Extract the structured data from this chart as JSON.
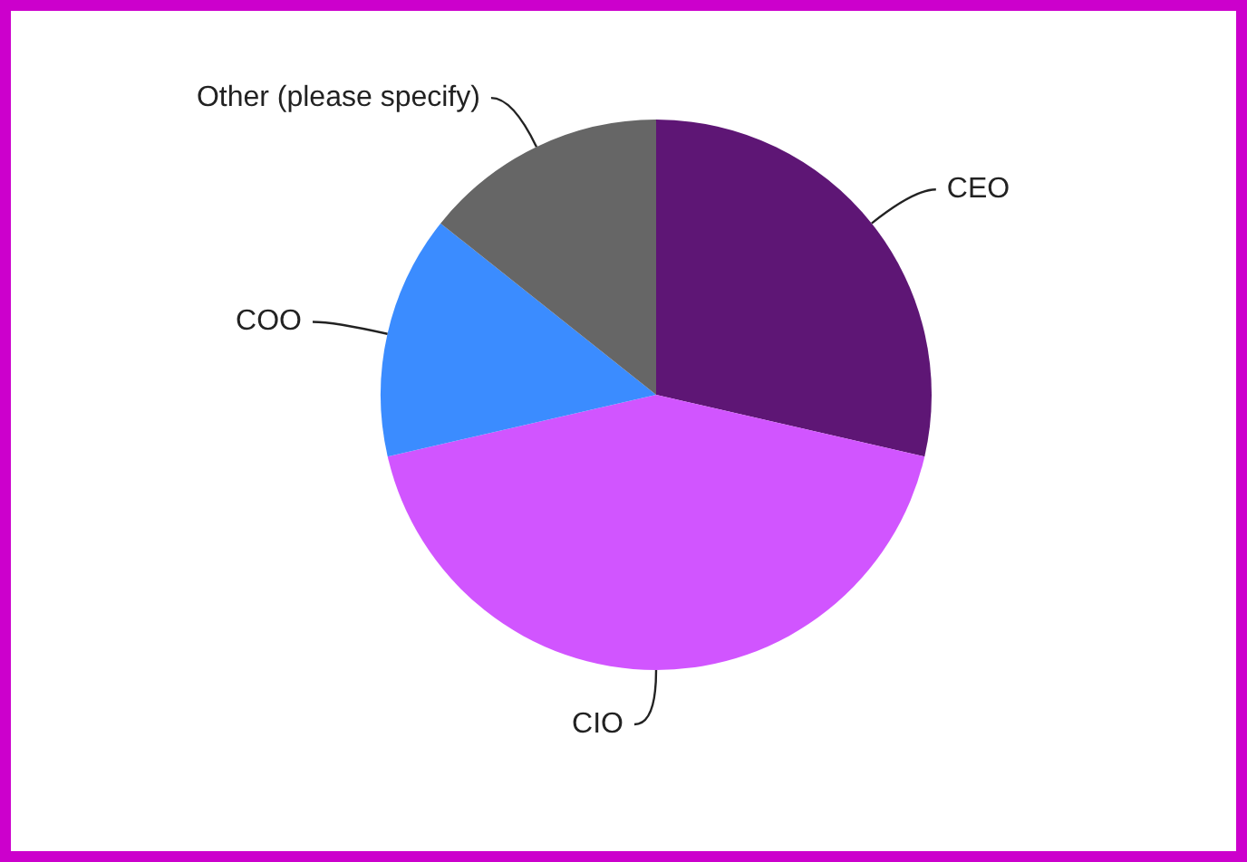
{
  "chart_data": {
    "type": "pie",
    "categories": [
      "CEO",
      "CIO",
      "COO",
      "Other (please specify)"
    ],
    "values": [
      28.6,
      42.8,
      14.3,
      14.3
    ],
    "colors": [
      "#5e1675",
      "#d155ff",
      "#3b8cff",
      "#666666"
    ],
    "legend": false
  }
}
